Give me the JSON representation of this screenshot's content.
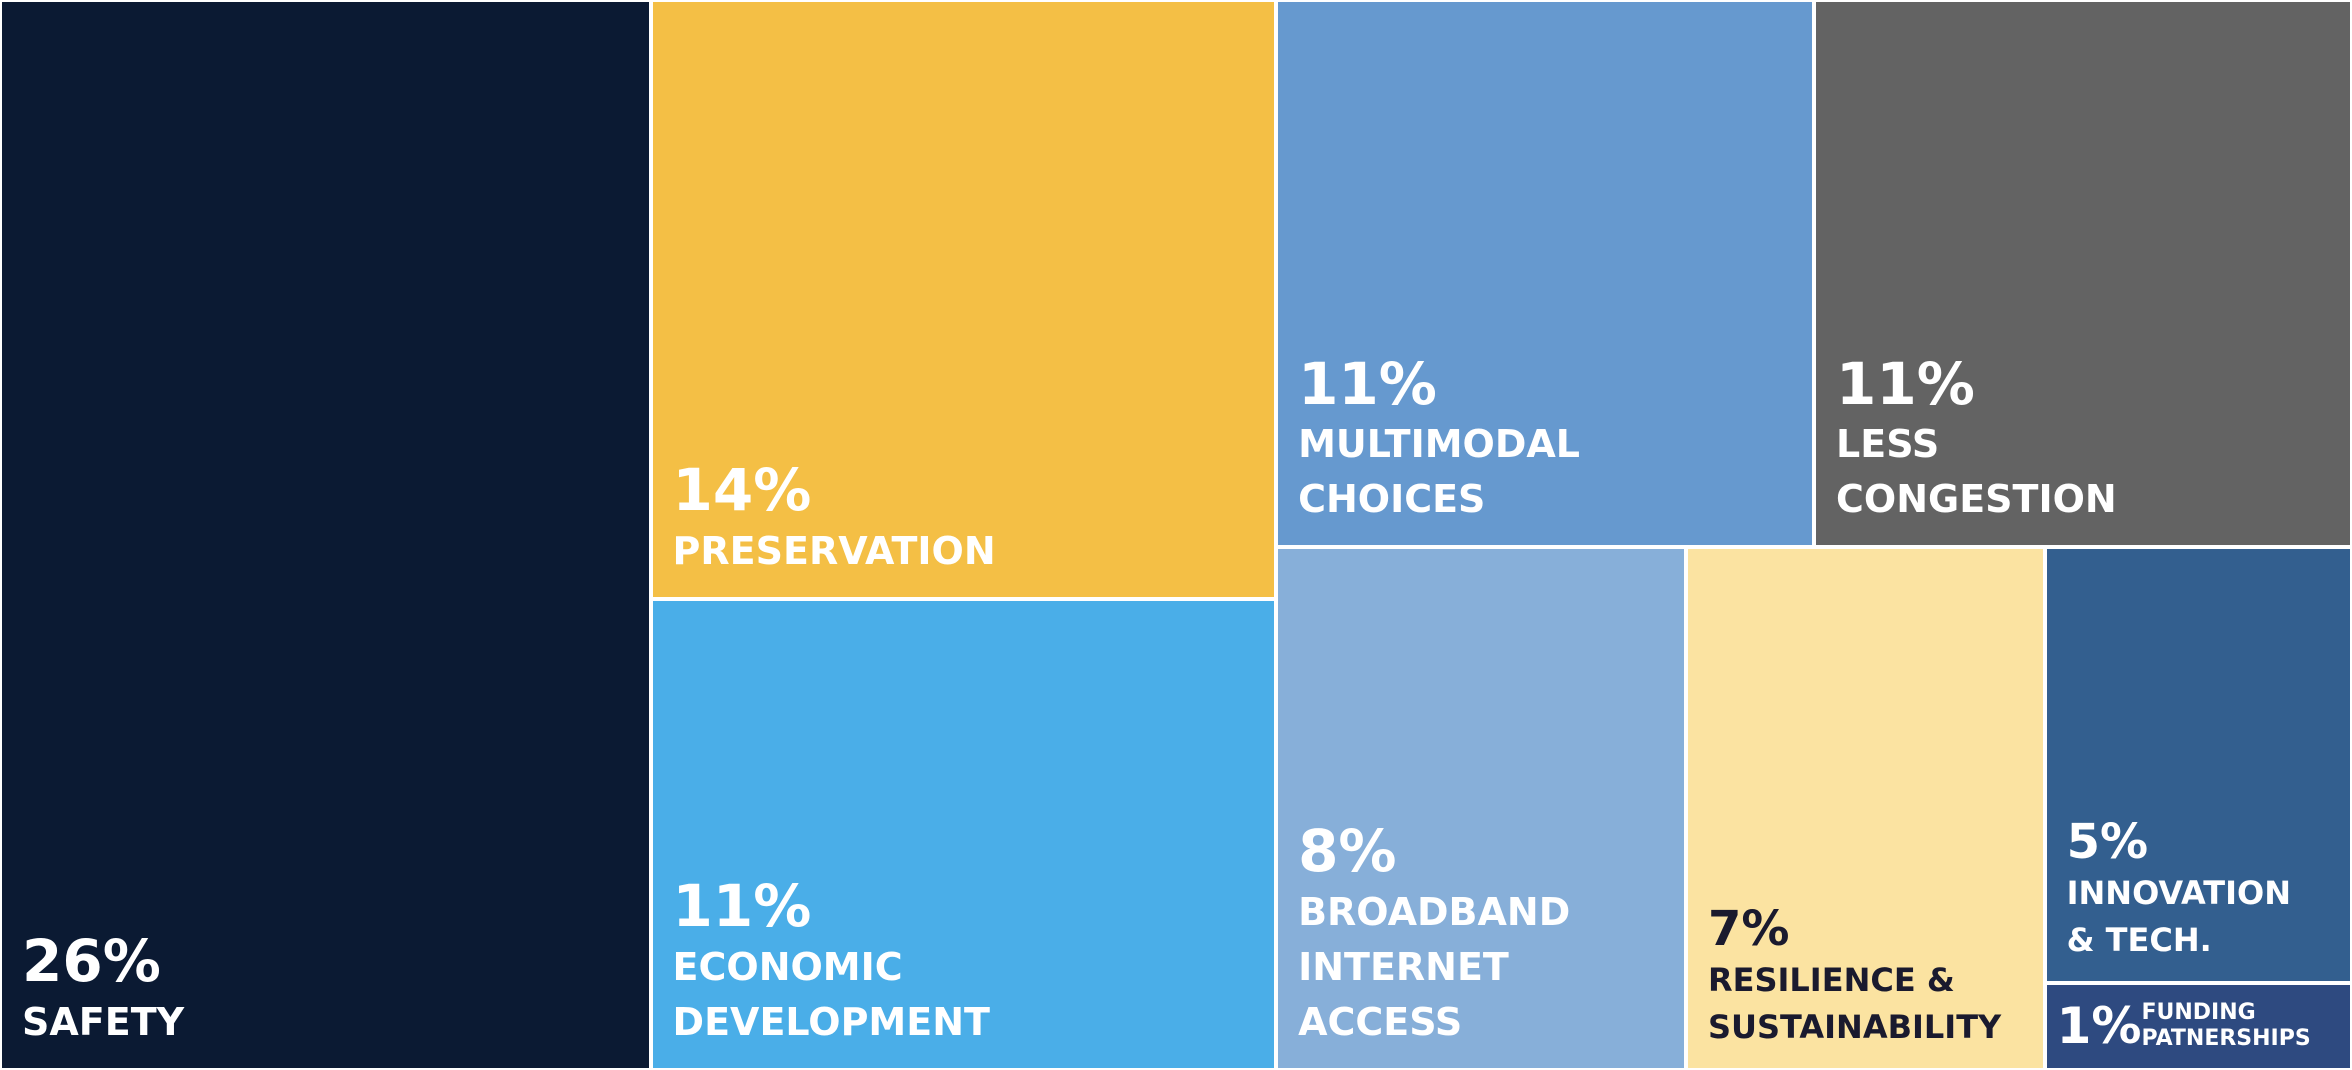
{
  "chart_data": {
    "type": "treemap",
    "categories": [
      "SAFETY",
      "PRESERVATION",
      "ECONOMIC DEVELOPMENT",
      "MULTIMODAL CHOICES",
      "LESS CONGESTION",
      "BROADBAND INTERNET ACCESS",
      "RESILIENCE & SUSTAINABILITY",
      "INNOVATION & TECH.",
      "FUNDING PATNERSHIPS"
    ],
    "values": [
      26,
      14,
      11,
      11,
      11,
      8,
      7,
      5,
      1
    ],
    "value_labels": [
      "26%",
      "14%",
      "11%",
      "11%",
      "11%",
      "8%",
      "7%",
      "5%",
      "1%"
    ],
    "colors": [
      "#0b1a33",
      "#f4bf45",
      "#4aaee8",
      "#6699cf",
      "#636363",
      "#87afd9",
      "#fbe3a1",
      "#335f8f",
      "#2e4a80"
    ]
  }
}
